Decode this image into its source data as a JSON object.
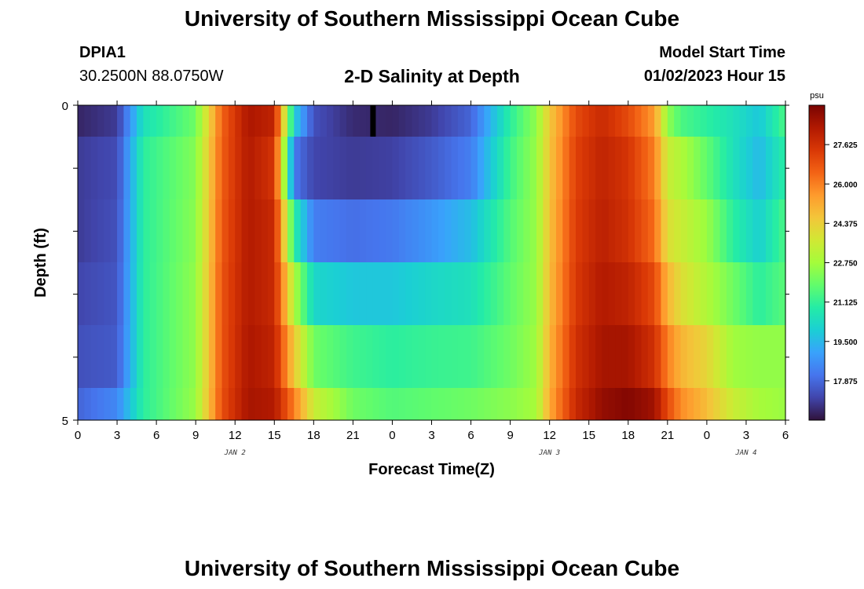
{
  "header": {
    "title": "University of Southern Mississippi Ocean Cube",
    "station": "DPIA1",
    "coordinates": "30.2500N  88.0750W",
    "subtitle": "2-D Salinity at Depth",
    "model_start_label": "Model Start Time",
    "model_start_value": "01/02/2023 Hour 15"
  },
  "footer": {
    "title": "University of Southern Mississippi Ocean Cube"
  },
  "chart_data": {
    "type": "heatmap",
    "title": "2-D Salinity at Depth",
    "xlabel": "Forecast Time(Z)",
    "ylabel": "Depth (ft)",
    "x_tick_labels": [
      "0",
      "3",
      "6",
      "9",
      "12",
      "15",
      "18",
      "21",
      "0",
      "3",
      "6",
      "9",
      "12",
      "15",
      "18",
      "21",
      "0",
      "3",
      "6"
    ],
    "date_labels": [
      {
        "label": "JAN 2",
        "hour": 12
      },
      {
        "label": "JAN 3",
        "hour": 36
      },
      {
        "label": "JAN 4",
        "hour": 51
      }
    ],
    "x_range_hours": [
      0,
      54
    ],
    "y_tick_labels": [
      "0",
      "5"
    ],
    "y_range": [
      0,
      5
    ],
    "current_time_marker_hour": 22.5,
    "colorbar": {
      "unit": "psu",
      "min": 16.25,
      "max": 29.25,
      "tick_labels": [
        "27.625",
        "26.000",
        "24.375",
        "22.750",
        "21.125",
        "19.500",
        "17.875"
      ],
      "tick_values": [
        27.625,
        26.0,
        24.375,
        22.75,
        21.125,
        19.5,
        17.875
      ],
      "colors": [
        "#30123b",
        "#4145ab",
        "#4675ed",
        "#39a2fc",
        "#1bcfd4",
        "#24eca6",
        "#61fc6c",
        "#a4fc3b",
        "#d1e834",
        "#f3c63a",
        "#fe9b2d",
        "#f36315",
        "#d93806",
        "#b11901",
        "#7a0402"
      ]
    },
    "depth_rows": [
      "0-0.5 ft",
      "0.5-1.5 ft",
      "1.5-2.5 ft",
      "2.5-3.5 ft",
      "3.5-4.5 ft",
      "4.5-5 ft"
    ],
    "time_knots_hours": [
      0,
      3,
      5,
      9,
      11,
      13,
      15,
      16.5,
      18,
      21,
      24,
      27,
      30,
      33,
      35,
      36,
      38,
      40,
      42,
      44,
      45,
      46,
      48,
      50,
      52,
      54
    ],
    "salinity_psu": [
      [
        16.6,
        17.0,
        20.5,
        22.0,
        26.5,
        28.4,
        28.0,
        20.0,
        17.4,
        16.7,
        16.6,
        17.0,
        17.8,
        21.0,
        22.5,
        24.5,
        27.0,
        27.8,
        27.0,
        25.5,
        22.5,
        21.5,
        21.0,
        20.5,
        19.8,
        21.5
      ],
      [
        17.0,
        17.3,
        21.0,
        22.3,
        26.6,
        28.3,
        27.5,
        18.2,
        17.2,
        17.0,
        17.1,
        17.6,
        18.3,
        21.3,
        22.6,
        24.6,
        27.2,
        28.0,
        27.5,
        26.0,
        23.5,
        23.0,
        21.8,
        20.5,
        19.5,
        21.0
      ],
      [
        17.0,
        17.4,
        21.0,
        22.4,
        26.7,
        28.3,
        27.8,
        21.0,
        18.3,
        18.0,
        18.2,
        18.8,
        19.6,
        21.6,
        22.6,
        24.7,
        27.3,
        28.1,
        27.6,
        26.3,
        24.0,
        23.5,
        22.6,
        21.0,
        20.0,
        21.5
      ],
      [
        17.2,
        17.5,
        21.0,
        22.5,
        26.8,
        28.3,
        27.8,
        23.0,
        20.2,
        19.8,
        19.8,
        20.2,
        20.5,
        21.8,
        22.6,
        24.8,
        27.4,
        28.3,
        28.0,
        27.0,
        25.0,
        24.0,
        23.0,
        22.0,
        21.0,
        21.7
      ],
      [
        17.4,
        17.6,
        21.0,
        22.5,
        26.8,
        28.4,
        28.0,
        24.5,
        22.0,
        21.3,
        21.0,
        21.2,
        21.3,
        22.0,
        22.7,
        25.0,
        27.6,
        28.5,
        28.5,
        27.6,
        26.0,
        25.0,
        24.2,
        22.7,
        22.5,
        22.5
      ],
      [
        17.8,
        18.5,
        21.0,
        22.6,
        26.9,
        28.5,
        28.3,
        26.0,
        23.5,
        22.0,
        21.6,
        21.8,
        22.0,
        22.4,
        22.8,
        25.2,
        27.8,
        28.8,
        29.1,
        28.6,
        27.0,
        25.8,
        24.8,
        23.5,
        22.8,
        22.6
      ]
    ]
  }
}
